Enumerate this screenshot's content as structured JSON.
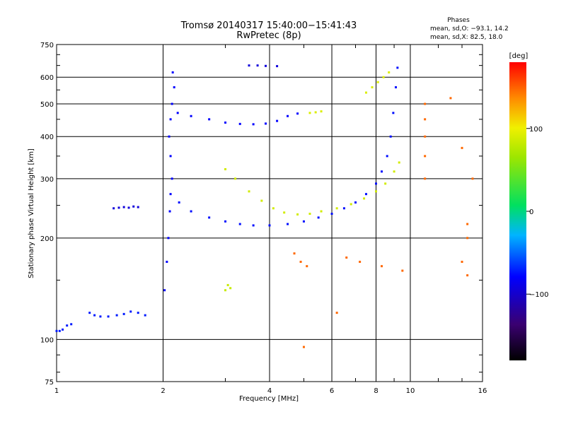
{
  "chart_data": {
    "type": "scatter",
    "title": "Tromsø 20140317 15:40:00−15:41:43",
    "subtitle": "RwPretec (8p)",
    "xlabel": "Frequency [MHz]",
    "ylabel": "Stationary phase Virtual Height [km]",
    "x_scale": "log",
    "y_scale": "log",
    "xlim": [
      1,
      16
    ],
    "ylim": [
      75,
      750
    ],
    "x_ticks": [
      1,
      2,
      4,
      6,
      8,
      10,
      16
    ],
    "x_tick_labels": [
      "1",
      "2",
      "4",
      "6",
      "8",
      "10",
      "16"
    ],
    "y_ticks": [
      75,
      100,
      200,
      300,
      400,
      500,
      600,
      750
    ],
    "y_tick_labels": [
      "75",
      "100",
      "200",
      "300",
      "400",
      "500",
      "600",
      "750"
    ],
    "grid": true,
    "colorbar": {
      "label": "[deg]",
      "range": [
        -180,
        180
      ],
      "ticks": [
        100,
        0,
        -100
      ],
      "tick_labels": [
        "100",
        "0",
        "−100"
      ]
    },
    "stats": {
      "heading": "Phases",
      "line_o": "mean, sd,O: −93.1, 14.2",
      "line_x": "mean, sd,X: 82.5, 18.0"
    },
    "series": [
      {
        "trace": "low-E",
        "phase": -90,
        "points": [
          [
            1.0,
            106
          ],
          [
            1.02,
            106
          ],
          [
            1.04,
            107
          ],
          [
            1.07,
            110
          ],
          [
            1.1,
            111
          ],
          [
            1.24,
            120
          ],
          [
            1.28,
            118
          ],
          [
            1.33,
            117
          ],
          [
            1.4,
            117
          ],
          [
            1.48,
            118
          ],
          [
            1.55,
            119
          ],
          [
            1.62,
            121
          ],
          [
            1.7,
            120
          ],
          [
            1.78,
            118
          ]
        ]
      },
      {
        "trace": "Es-near-1.5MHz",
        "phase": -110,
        "points": [
          [
            1.45,
            245
          ],
          [
            1.5,
            246
          ],
          [
            1.55,
            247
          ],
          [
            1.6,
            246
          ],
          [
            1.65,
            248
          ],
          [
            1.7,
            247
          ]
        ]
      },
      {
        "trace": "F-O-mode",
        "phase": -95,
        "points": [
          [
            2.22,
            255
          ],
          [
            2.4,
            240
          ],
          [
            2.7,
            230
          ],
          [
            3.0,
            224
          ],
          [
            3.3,
            220
          ],
          [
            3.6,
            218
          ],
          [
            4.0,
            218
          ],
          [
            4.5,
            220
          ],
          [
            5.0,
            224
          ],
          [
            5.5,
            230
          ],
          [
            6.0,
            236
          ],
          [
            6.5,
            245
          ],
          [
            7.0,
            255
          ],
          [
            7.5,
            270
          ],
          [
            8.0,
            290
          ],
          [
            8.3,
            315
          ],
          [
            8.6,
            350
          ],
          [
            8.8,
            400
          ],
          [
            8.95,
            470
          ],
          [
            9.1,
            560
          ],
          [
            9.2,
            640
          ]
        ]
      },
      {
        "trace": "F-X-mode",
        "phase": 85,
        "points": [
          [
            3.0,
            320
          ],
          [
            3.2,
            300
          ],
          [
            3.5,
            275
          ],
          [
            3.8,
            258
          ],
          [
            4.1,
            245
          ],
          [
            4.4,
            238
          ],
          [
            4.8,
            235
          ],
          [
            5.2,
            236
          ],
          [
            5.6,
            240
          ],
          [
            6.2,
            245
          ],
          [
            6.8,
            252
          ],
          [
            7.4,
            262
          ],
          [
            8.0,
            275
          ],
          [
            8.5,
            290
          ],
          [
            9.0,
            315
          ],
          [
            9.3,
            335
          ]
        ]
      },
      {
        "trace": "F-multihop-O",
        "phase": -100,
        "points": [
          [
            2.2,
            470
          ],
          [
            2.4,
            460
          ],
          [
            2.7,
            450
          ],
          [
            3.0,
            440
          ],
          [
            3.3,
            436
          ],
          [
            3.6,
            435
          ],
          [
            3.9,
            437
          ],
          [
            4.2,
            445
          ],
          [
            4.5,
            460
          ],
          [
            4.8,
            468
          ]
        ]
      },
      {
        "trace": "F-multihop-X",
        "phase": 90,
        "points": [
          [
            5.2,
            470
          ],
          [
            5.4,
            472
          ],
          [
            5.6,
            475
          ],
          [
            7.5,
            540
          ],
          [
            7.8,
            560
          ],
          [
            8.1,
            580
          ],
          [
            8.4,
            600
          ],
          [
            8.7,
            620
          ]
        ]
      },
      {
        "trace": "column-near-2MHz",
        "phase": -100,
        "points": [
          [
            2.02,
            140
          ],
          [
            2.05,
            170
          ],
          [
            2.07,
            200
          ],
          [
            2.09,
            240
          ],
          [
            2.1,
            270
          ],
          [
            2.12,
            300
          ],
          [
            2.1,
            350
          ],
          [
            2.08,
            400
          ],
          [
            2.1,
            450
          ],
          [
            2.12,
            500
          ],
          [
            2.15,
            560
          ],
          [
            2.13,
            620
          ]
        ]
      },
      {
        "trace": "scatter-near-3MHz",
        "phase": 80,
        "points": [
          [
            3.0,
            140
          ],
          [
            3.05,
            145
          ],
          [
            3.1,
            142
          ]
        ]
      },
      {
        "trace": "scatter-right-orange",
        "phase": 150,
        "points": [
          [
            11.0,
            500
          ],
          [
            11.0,
            450
          ],
          [
            11.0,
            400
          ],
          [
            11.0,
            350
          ],
          [
            11.0,
            300
          ],
          [
            14.0,
            370
          ],
          [
            14.5,
            220
          ],
          [
            14.5,
            200
          ],
          [
            13.0,
            520
          ],
          [
            15.0,
            300
          ]
        ]
      },
      {
        "trace": "scatter-top",
        "phase": -110,
        "points": [
          [
            3.5,
            650
          ],
          [
            3.7,
            650
          ],
          [
            3.9,
            648
          ],
          [
            4.2,
            647
          ]
        ]
      },
      {
        "trace": "scatter-sparse",
        "phase": 150,
        "points": [
          [
            4.7,
            180
          ],
          [
            4.9,
            170
          ],
          [
            5.1,
            165
          ],
          [
            5.0,
            95
          ],
          [
            6.2,
            120
          ],
          [
            6.6,
            175
          ],
          [
            7.2,
            170
          ],
          [
            8.3,
            165
          ],
          [
            9.5,
            160
          ],
          [
            14.0,
            170
          ],
          [
            14.5,
            155
          ]
        ]
      }
    ]
  }
}
